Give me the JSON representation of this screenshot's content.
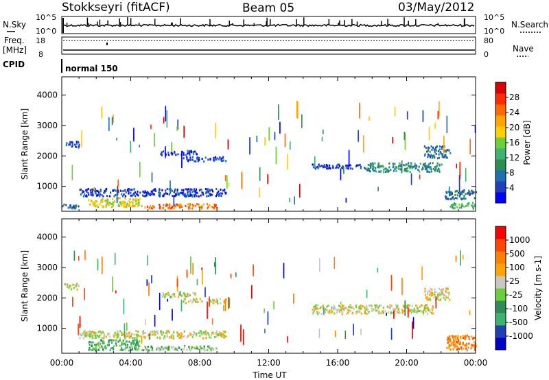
{
  "header": {
    "station": "Stokkseyri (fitACF)",
    "beam": "Beam 05",
    "date": "03/May/2012"
  },
  "left_labels": {
    "nsky": "N.Sky",
    "freq": "Freq.",
    "mhz": "[MHz]",
    "cpid": "CPID"
  },
  "right_labels": {
    "nsearch": "N.Search",
    "nave": "Nave"
  },
  "chart_data": [
    {
      "type": "line",
      "name": "noise-panel",
      "y_ticks_left": [
        "10^5",
        "10^0"
      ],
      "y_ticks_right": [
        "10^5",
        "10^0"
      ],
      "ylim": [
        0,
        5
      ]
    },
    {
      "type": "line",
      "name": "freq-nave-panel",
      "y_ticks_left": [
        "18",
        "8"
      ],
      "y_ticks_right": [
        "80",
        "0"
      ],
      "cpid_label": "normal 150"
    },
    {
      "type": "heatmap",
      "name": "power",
      "ylabel": "Slant Range [km]",
      "ylim": [
        180,
        4600
      ],
      "y_ticks": [
        "1000",
        "2000",
        "3000",
        "4000"
      ],
      "xlim": [
        0,
        24
      ],
      "colorbar": {
        "label": "Power [dB]",
        "ticks": [
          "28",
          "24",
          "20",
          "16",
          "12",
          "8",
          "4"
        ],
        "colors": [
          "#0000ff",
          "#1f3fbf",
          "#1e6eb4",
          "#2e8b57",
          "#3cb371",
          "#6bcf3a",
          "#ffd000",
          "#ffa500",
          "#ff6a00",
          "#ff2a00",
          "#dd0000"
        ]
      },
      "bands": [
        {
          "t0": 0.2,
          "t1": 1.0,
          "r0": 2300,
          "r1": 2500,
          "c": 1
        },
        {
          "t0": 5.7,
          "t1": 7.8,
          "r0": 2050,
          "r1": 2200,
          "c": 1
        },
        {
          "t0": 7.0,
          "t1": 9.5,
          "r0": 1850,
          "r1": 2000,
          "c": 1
        },
        {
          "t0": 14.5,
          "t1": 17.5,
          "r0": 1600,
          "r1": 1750,
          "c": 1
        },
        {
          "t0": 17.5,
          "t1": 22.0,
          "r0": 1500,
          "r1": 1800,
          "c": 3
        },
        {
          "t0": 21.0,
          "t1": 22.5,
          "r0": 1950,
          "r1": 2350,
          "c": 2
        },
        {
          "t0": 1.0,
          "t1": 9.5,
          "r0": 700,
          "r1": 950,
          "c": 1
        },
        {
          "t0": 1.5,
          "t1": 4.5,
          "r0": 350,
          "r1": 650,
          "c": 6
        },
        {
          "t0": 4.5,
          "t1": 9.0,
          "r0": 300,
          "r1": 450,
          "c": 8
        },
        {
          "t0": 0.0,
          "t1": 1.0,
          "r0": 300,
          "r1": 450,
          "c": 2
        },
        {
          "t0": 22.2,
          "t1": 24.0,
          "r0": 600,
          "r1": 900,
          "c": 2
        },
        {
          "t0": 22.5,
          "t1": 24.0,
          "r0": 300,
          "r1": 500,
          "c": 4
        }
      ]
    },
    {
      "type": "heatmap",
      "name": "velocity",
      "ylabel": "Slant Range [km]",
      "ylim": [
        180,
        4600
      ],
      "y_ticks": [
        "1000",
        "2000",
        "3000",
        "4000"
      ],
      "xlim": [
        0,
        24
      ],
      "x_ticks": [
        "00:00",
        "04:00",
        "08:00",
        "12:00",
        "16:00",
        "20:00",
        "00:00"
      ],
      "xlabel": "Time UT",
      "colorbar": {
        "label": "Velocity [m s-1]",
        "ticks": [
          "1000",
          "500",
          "100",
          "25",
          "-25",
          "-100",
          "-500",
          "-1000"
        ],
        "colors": [
          "#0000cd",
          "#1e40b4",
          "#3cb371",
          "#2e8b57",
          "#6bcf3a",
          "#c8c8c0",
          "#ffa500",
          "#ff7f00",
          "#ff4500",
          "#ff0000"
        ]
      },
      "bands": [
        {
          "t0": 0.1,
          "t1": 1.0,
          "r0": 2300,
          "r1": 2500,
          "c": 5
        },
        {
          "t0": 5.7,
          "t1": 7.8,
          "r0": 2050,
          "r1": 2200,
          "c": 5
        },
        {
          "t0": 7.0,
          "t1": 9.5,
          "r0": 1850,
          "r1": 2000,
          "c": 5
        },
        {
          "t0": 14.5,
          "t1": 21.5,
          "r0": 1500,
          "r1": 1800,
          "c": 5
        },
        {
          "t0": 21.0,
          "t1": 22.5,
          "r0": 1950,
          "r1": 2350,
          "c": 5
        },
        {
          "t0": 1.0,
          "t1": 9.5,
          "r0": 700,
          "r1": 950,
          "c": 5
        },
        {
          "t0": 1.5,
          "t1": 4.5,
          "r0": 300,
          "r1": 650,
          "c": 3
        },
        {
          "t0": 4.5,
          "t1": 9.0,
          "r0": 300,
          "r1": 450,
          "c": 4
        },
        {
          "t0": 22.3,
          "t1": 24.0,
          "r0": 300,
          "r1": 800,
          "c": 7
        }
      ]
    }
  ]
}
